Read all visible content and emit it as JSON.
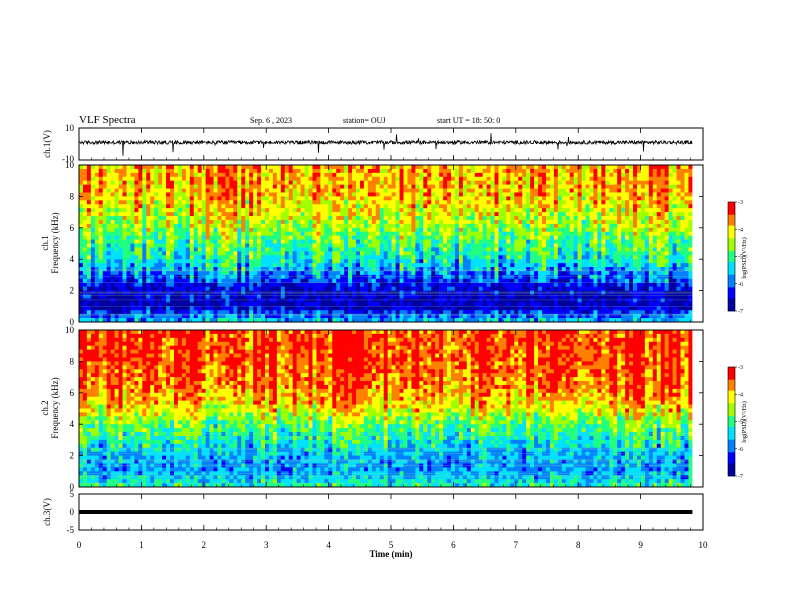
{
  "header": {
    "title": "VLF Spectra",
    "date": "Sep. 6 , 2023",
    "station": "station= OUJ",
    "start": "start  UT =   18: 50: 0"
  },
  "colors": {
    "spectrogram_scale": [
      "#0000a0",
      "#0000ff",
      "#0080ff",
      "#00e0ff",
      "#20ff80",
      "#a0ff00",
      "#ffff00",
      "#ff8000",
      "#ff0000"
    ],
    "trace": "#000000"
  },
  "chart_data": [
    {
      "type": "line",
      "name": "ch1-waveform",
      "ylabel": "ch.1(V)",
      "ylim": [
        -10,
        10
      ],
      "yticks": [
        "10",
        "-10"
      ],
      "x_range_min": [
        0,
        9.83
      ],
      "baseline_v": 1.0
    },
    {
      "type": "heatmap",
      "name": "ch1-spectrogram",
      "ylabel_line1": "ch.1",
      "ylabel_line2": "Frequency  (kHz)",
      "ylim": [
        0,
        10
      ],
      "yticks": [
        "0",
        "2",
        "4",
        "6",
        "8",
        "10"
      ],
      "x_range_min": [
        0,
        9.83
      ],
      "color_range": [
        -7,
        -3
      ],
      "color_ticks": [
        "-3",
        "-4",
        "-5",
        "-6",
        "-7"
      ],
      "color_label": "log(PSD)(V²/Hz)",
      "profile_freq_khz": [
        0,
        1,
        2,
        3,
        4,
        5,
        6,
        7,
        8,
        9,
        10
      ],
      "profile_log_psd": [
        -5.5,
        -6.8,
        -6.6,
        -6.0,
        -5.3,
        -5.0,
        -4.6,
        -4.3,
        -4.0,
        -3.9,
        -3.9
      ]
    },
    {
      "type": "heatmap",
      "name": "ch2-spectrogram",
      "ylabel_line1": "ch.2",
      "ylabel_line2": "Frequency  (kHz)",
      "ylim": [
        0,
        10
      ],
      "yticks": [
        "0",
        "2",
        "4",
        "6",
        "8",
        "10"
      ],
      "x_range_min": [
        0,
        9.83
      ],
      "color_range": [
        -7,
        -3
      ],
      "color_ticks": [
        "-3",
        "-4",
        "-5",
        "-6",
        "-7"
      ],
      "color_label": "log(PSD)(V²/Hz)",
      "profile_freq_khz": [
        0,
        1,
        2,
        3,
        4,
        5,
        6,
        7,
        8,
        9,
        10
      ],
      "profile_log_psd": [
        -5.2,
        -5.8,
        -5.7,
        -5.3,
        -4.9,
        -4.2,
        -3.8,
        -3.6,
        -3.5,
        -3.5,
        -3.5
      ]
    },
    {
      "type": "line",
      "name": "ch3-waveform",
      "ylabel": "ch.3(V)",
      "ylim": [
        -5,
        5
      ],
      "yticks": [
        "5",
        "0",
        "-5"
      ],
      "x_range_min": [
        0,
        9.83
      ],
      "constant_v": 0.0
    }
  ],
  "xaxis": {
    "label": "Time  (min)",
    "xlim": [
      0,
      10
    ],
    "ticks": [
      "0",
      "1",
      "2",
      "3",
      "4",
      "5",
      "6",
      "7",
      "8",
      "9",
      "10"
    ]
  }
}
